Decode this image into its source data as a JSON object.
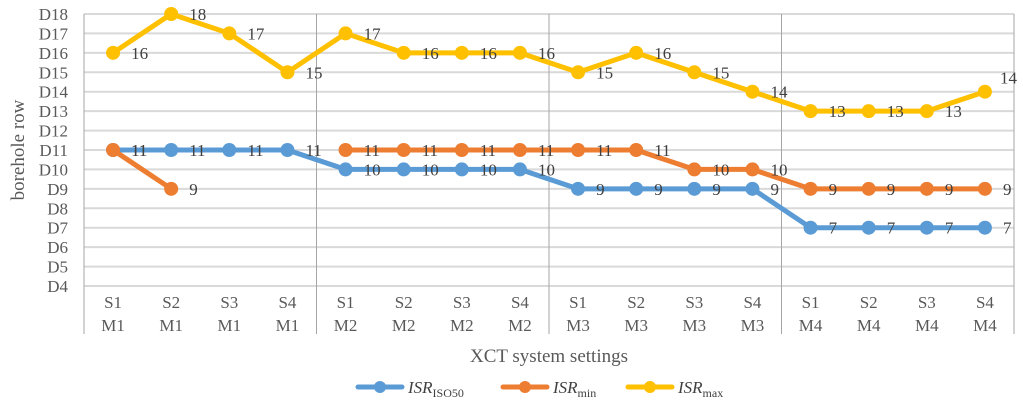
{
  "chart_data": {
    "type": "line",
    "title": "",
    "xlabel": "XCT system settings",
    "ylabel": "borehole row",
    "ylim": [
      4,
      18
    ],
    "y_tick_labels": [
      "D4",
      "D5",
      "D6",
      "D7",
      "D8",
      "D9",
      "D10",
      "D11",
      "D12",
      "D13",
      "D14",
      "D15",
      "D16",
      "D17",
      "D18"
    ],
    "grid": "horizontal",
    "legend_position": "bottom",
    "categories": [
      [
        "S1",
        "M1"
      ],
      [
        "S2",
        "M1"
      ],
      [
        "S3",
        "M1"
      ],
      [
        "S4",
        "M1"
      ],
      [
        "S1",
        "M2"
      ],
      [
        "S2",
        "M2"
      ],
      [
        "S3",
        "M2"
      ],
      [
        "S4",
        "M2"
      ],
      [
        "S1",
        "M3"
      ],
      [
        "S2",
        "M3"
      ],
      [
        "S3",
        "M3"
      ],
      [
        "S4",
        "M3"
      ],
      [
        "S1",
        "M4"
      ],
      [
        "S2",
        "M4"
      ],
      [
        "S3",
        "M4"
      ],
      [
        "S4",
        "M4"
      ]
    ],
    "group_count": 4,
    "series": [
      {
        "name": "ISR",
        "subscript": "ISO50",
        "color": "#5B9BD5",
        "values": [
          11,
          11,
          11,
          11,
          10,
          10,
          10,
          10,
          9,
          9,
          9,
          9,
          7,
          7,
          7,
          7
        ]
      },
      {
        "name": "ISR",
        "subscript": "min",
        "color": "#ED7D31",
        "values": [
          11,
          9,
          null,
          null,
          11,
          11,
          11,
          11,
          11,
          11,
          10,
          10,
          9,
          9,
          9,
          9
        ]
      },
      {
        "name": "ISR",
        "subscript": "max",
        "color": "#FFC000",
        "values": [
          16,
          18,
          17,
          15,
          17,
          16,
          16,
          16,
          15,
          16,
          15,
          14,
          13,
          13,
          13,
          14
        ]
      }
    ]
  }
}
